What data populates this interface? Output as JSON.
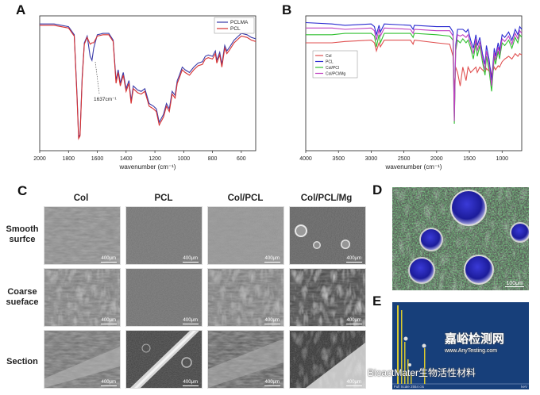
{
  "panels": {
    "a": "A",
    "b": "B",
    "c": "C",
    "d": "D",
    "e": "E"
  },
  "chart_data": [
    {
      "type": "line",
      "panel": "A",
      "xlabel": "wavenumber (cm⁻¹)",
      "ylabel": "",
      "xlim": [
        2000,
        500
      ],
      "xticks": [
        2000,
        1800,
        1600,
        1400,
        1200,
        1000,
        800,
        600
      ],
      "annotation": "1637cm⁻¹",
      "legend": "top-right",
      "series": [
        {
          "name": "PCLMA",
          "color": "#3a3aa8",
          "x": [
            2000,
            1900,
            1800,
            1760,
            1740,
            1730,
            1720,
            1705,
            1690,
            1670,
            1650,
            1637,
            1625,
            1600,
            1560,
            1520,
            1490,
            1470,
            1455,
            1440,
            1420,
            1400,
            1380,
            1365,
            1350,
            1320,
            1295,
            1270,
            1240,
            1210,
            1190,
            1170,
            1160,
            1140,
            1120,
            1100,
            1080,
            1060,
            1045,
            1030,
            1010,
            990,
            960,
            930,
            900,
            870,
            850,
            830,
            800,
            780,
            770,
            750,
            735,
            715,
            700,
            680,
            650,
            620,
            600,
            560,
            530,
            500
          ],
          "y": [
            0.94,
            0.94,
            0.92,
            0.86,
            0.4,
            0.1,
            0.12,
            0.55,
            0.8,
            0.85,
            0.7,
            0.67,
            0.76,
            0.86,
            0.87,
            0.87,
            0.82,
            0.52,
            0.6,
            0.5,
            0.58,
            0.46,
            0.52,
            0.37,
            0.48,
            0.45,
            0.44,
            0.46,
            0.35,
            0.33,
            0.31,
            0.21,
            0.23,
            0.27,
            0.35,
            0.31,
            0.44,
            0.41,
            0.52,
            0.56,
            0.62,
            0.6,
            0.58,
            0.62,
            0.65,
            0.66,
            0.7,
            0.71,
            0.7,
            0.74,
            0.67,
            0.73,
            0.64,
            0.78,
            0.74,
            0.77,
            0.82,
            0.85,
            0.87,
            0.86,
            0.84,
            0.83
          ]
        },
        {
          "name": "PCL",
          "color": "#d63030",
          "x": [
            2000,
            1900,
            1800,
            1760,
            1740,
            1730,
            1720,
            1705,
            1690,
            1670,
            1650,
            1637,
            1625,
            1600,
            1560,
            1520,
            1490,
            1470,
            1455,
            1440,
            1420,
            1400,
            1380,
            1365,
            1350,
            1320,
            1295,
            1270,
            1240,
            1210,
            1190,
            1170,
            1160,
            1140,
            1120,
            1100,
            1080,
            1060,
            1045,
            1030,
            1010,
            990,
            960,
            930,
            900,
            870,
            850,
            830,
            800,
            780,
            770,
            750,
            735,
            715,
            700,
            680,
            650,
            620,
            600,
            560,
            530,
            500
          ],
          "y": [
            0.93,
            0.93,
            0.91,
            0.85,
            0.38,
            0.09,
            0.11,
            0.53,
            0.79,
            0.84,
            0.79,
            0.8,
            0.8,
            0.85,
            0.86,
            0.86,
            0.81,
            0.5,
            0.58,
            0.48,
            0.56,
            0.44,
            0.5,
            0.35,
            0.46,
            0.43,
            0.42,
            0.44,
            0.33,
            0.31,
            0.29,
            0.19,
            0.21,
            0.25,
            0.33,
            0.29,
            0.42,
            0.39,
            0.5,
            0.54,
            0.6,
            0.58,
            0.56,
            0.6,
            0.63,
            0.64,
            0.68,
            0.69,
            0.68,
            0.72,
            0.65,
            0.71,
            0.62,
            0.76,
            0.72,
            0.75,
            0.8,
            0.83,
            0.85,
            0.84,
            0.82,
            0.81
          ]
        }
      ]
    },
    {
      "type": "line",
      "panel": "B",
      "xlabel": "wavenumber (cm⁻¹)",
      "ylabel": "",
      "xlim": [
        4000,
        700
      ],
      "xticks": [
        4000,
        3500,
        3000,
        2500,
        2000,
        1500,
        1000
      ],
      "legend": "top-left",
      "series": [
        {
          "name": "Col",
          "color": "#e05050",
          "x": [
            4000,
            3600,
            3400,
            3000,
            2950,
            2920,
            2880,
            2860,
            2800,
            2400,
            2360,
            2340,
            2000,
            1800,
            1750,
            1730,
            1710,
            1680,
            1640,
            1600,
            1550,
            1520,
            1480,
            1440,
            1400,
            1380,
            1340,
            1300,
            1260,
            1240,
            1200,
            1180,
            1160,
            1120,
            1100,
            1060,
            1040,
            1000,
            960,
            900,
            850,
            800,
            760,
            730,
            700
          ],
          "y": [
            0.8,
            0.8,
            0.81,
            0.82,
            0.8,
            0.74,
            0.8,
            0.77,
            0.82,
            0.82,
            0.79,
            0.82,
            0.8,
            0.79,
            0.7,
            0.45,
            0.62,
            0.58,
            0.48,
            0.62,
            0.52,
            0.62,
            0.58,
            0.6,
            0.62,
            0.58,
            0.62,
            0.6,
            0.58,
            0.61,
            0.59,
            0.61,
            0.56,
            0.62,
            0.6,
            0.63,
            0.62,
            0.66,
            0.68,
            0.7,
            0.68,
            0.72,
            0.7,
            0.72,
            0.71
          ]
        },
        {
          "name": "PCL",
          "color": "#2a2ad0",
          "x": [
            4000,
            3600,
            3400,
            3000,
            2950,
            2920,
            2880,
            2860,
            2800,
            2400,
            2360,
            2340,
            2000,
            1800,
            1750,
            1730,
            1710,
            1680,
            1640,
            1600,
            1550,
            1520,
            1480,
            1440,
            1400,
            1380,
            1340,
            1300,
            1260,
            1240,
            1200,
            1180,
            1160,
            1120,
            1100,
            1060,
            1040,
            1000,
            960,
            900,
            850,
            800,
            760,
            730,
            700
          ],
          "y": [
            0.95,
            0.94,
            0.93,
            0.94,
            0.92,
            0.86,
            0.93,
            0.88,
            0.94,
            0.93,
            0.9,
            0.93,
            0.92,
            0.92,
            0.88,
            0.25,
            0.78,
            0.9,
            0.9,
            0.9,
            0.88,
            0.9,
            0.82,
            0.76,
            0.86,
            0.78,
            0.84,
            0.72,
            0.64,
            0.78,
            0.68,
            0.6,
            0.52,
            0.76,
            0.7,
            0.8,
            0.74,
            0.86,
            0.84,
            0.88,
            0.82,
            0.9,
            0.86,
            0.92,
            0.9
          ]
        },
        {
          "name": "Col/PCl",
          "color": "#30c030",
          "x": [
            4000,
            3600,
            3400,
            3000,
            2950,
            2920,
            2880,
            2860,
            2800,
            2400,
            2360,
            2340,
            2000,
            1800,
            1750,
            1730,
            1710,
            1680,
            1640,
            1600,
            1550,
            1520,
            1480,
            1440,
            1400,
            1380,
            1340,
            1300,
            1260,
            1240,
            1200,
            1180,
            1160,
            1120,
            1100,
            1060,
            1040,
            1000,
            960,
            900,
            850,
            800,
            760,
            730,
            700
          ],
          "y": [
            0.86,
            0.86,
            0.87,
            0.87,
            0.85,
            0.77,
            0.86,
            0.8,
            0.87,
            0.87,
            0.84,
            0.87,
            0.86,
            0.85,
            0.82,
            0.2,
            0.74,
            0.82,
            0.8,
            0.83,
            0.8,
            0.82,
            0.76,
            0.68,
            0.8,
            0.7,
            0.78,
            0.66,
            0.56,
            0.7,
            0.6,
            0.52,
            0.44,
            0.7,
            0.64,
            0.74,
            0.68,
            0.8,
            0.78,
            0.82,
            0.76,
            0.84,
            0.8,
            0.86,
            0.84
          ]
        },
        {
          "name": "Col/PCl/Mg",
          "color": "#c040c0",
          "x": [
            4000,
            3600,
            3400,
            3000,
            2950,
            2920,
            2880,
            2860,
            2800,
            2400,
            2360,
            2340,
            2000,
            1800,
            1750,
            1730,
            1710,
            1680,
            1640,
            1600,
            1550,
            1520,
            1480,
            1440,
            1400,
            1380,
            1340,
            1300,
            1260,
            1240,
            1200,
            1180,
            1160,
            1120,
            1100,
            1060,
            1040,
            1000,
            960,
            900,
            850,
            800,
            760,
            730,
            700
          ],
          "y": [
            0.91,
            0.91,
            0.9,
            0.91,
            0.89,
            0.82,
            0.9,
            0.85,
            0.91,
            0.9,
            0.87,
            0.9,
            0.89,
            0.89,
            0.85,
            0.22,
            0.76,
            0.86,
            0.85,
            0.86,
            0.84,
            0.86,
            0.79,
            0.72,
            0.83,
            0.74,
            0.81,
            0.69,
            0.6,
            0.74,
            0.64,
            0.56,
            0.48,
            0.73,
            0.67,
            0.77,
            0.71,
            0.83,
            0.81,
            0.85,
            0.79,
            0.87,
            0.83,
            0.89,
            0.87
          ]
        }
      ]
    }
  ],
  "sem_grid": {
    "columns": [
      "Col",
      "PCL",
      "Col/PCL",
      "Col/PCL/Mg"
    ],
    "rows": [
      {
        "label_line1": "Smooth",
        "label_line2": "surfce"
      },
      {
        "label_line1": "Coarse",
        "label_line2": "sueface"
      },
      {
        "label_line1": "Section",
        "label_line2": ""
      }
    ],
    "scale_bar": "400μm"
  },
  "panel_d": {
    "scale_bar": "100μm"
  },
  "panel_e": {
    "footer": "Full Scale 2554 cts",
    "unit": "keV"
  },
  "watermark": {
    "text1": "BioactMater生物活性材料",
    "text2": "嘉峪检测网",
    "text3": "www.AnyTesting.com"
  },
  "colors": {
    "pclma": "#3a3aa8",
    "pcl": "#d63030",
    "e_bg": "#163e78",
    "e_peak": "#d8c830"
  }
}
